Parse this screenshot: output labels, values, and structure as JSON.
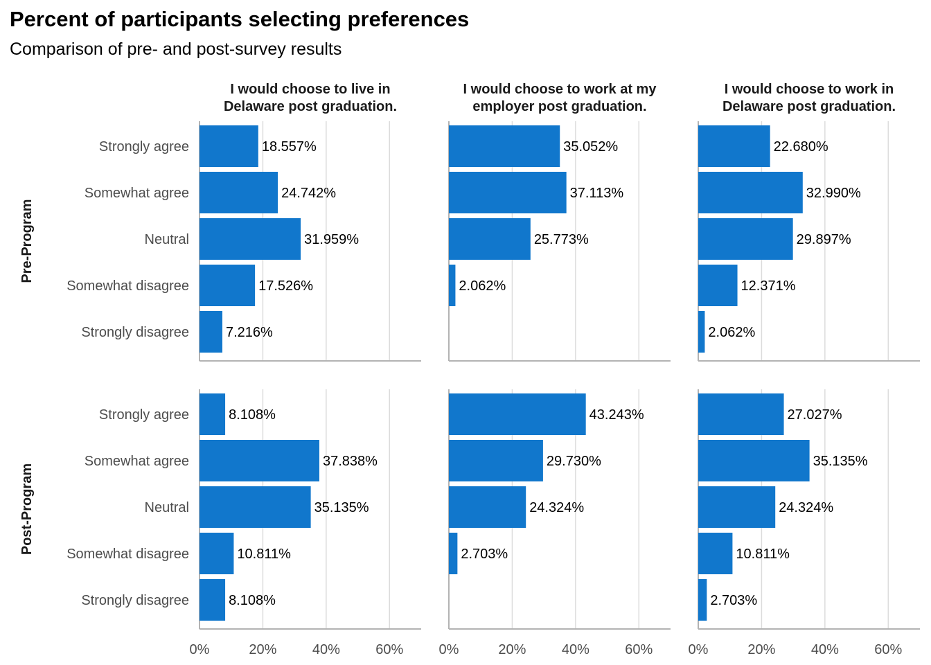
{
  "chart_data": {
    "type": "bar",
    "orientation": "horizontal",
    "title": "Percent of participants selecting preferences",
    "subtitle": "Comparison of pre- and post-survey results",
    "categories": [
      "Strongly agree",
      "Somewhat agree",
      "Neutral",
      "Somewhat disagree",
      "Strongly disagree"
    ],
    "facet_columns": [
      {
        "line1": "I would choose to live in",
        "line2": "Delaware post graduation."
      },
      {
        "line1": "I would choose to work at my",
        "line2": "employer post graduation."
      },
      {
        "line1": "I would choose to work in",
        "line2": "Delaware post graduation."
      }
    ],
    "facet_rows": [
      "Pre-Program",
      "Post-Program"
    ],
    "xlim": [
      0,
      70
    ],
    "x_ticks": [
      0,
      20,
      40,
      60
    ],
    "x_tick_labels": [
      "0%",
      "20%",
      "40%",
      "60%"
    ],
    "grid": true,
    "bar_color": "#1177CC",
    "panels": [
      {
        "row": 0,
        "col": 0,
        "values": [
          18.557,
          24.742,
          31.959,
          17.526,
          7.216
        ],
        "labels": [
          "18.557%",
          "24.742%",
          "31.959%",
          "17.526%",
          "7.216%"
        ]
      },
      {
        "row": 0,
        "col": 1,
        "values": [
          35.052,
          37.113,
          25.773,
          2.062,
          null
        ],
        "labels": [
          "35.052%",
          "37.113%",
          "25.773%",
          "2.062%",
          ""
        ]
      },
      {
        "row": 0,
        "col": 2,
        "values": [
          22.68,
          32.99,
          29.897,
          12.371,
          2.062
        ],
        "labels": [
          "22.680%",
          "32.990%",
          "29.897%",
          "12.371%",
          "2.062%"
        ]
      },
      {
        "row": 1,
        "col": 0,
        "values": [
          8.108,
          37.838,
          35.135,
          10.811,
          8.108
        ],
        "labels": [
          "8.108%",
          "37.838%",
          "35.135%",
          "10.811%",
          "8.108%"
        ]
      },
      {
        "row": 1,
        "col": 1,
        "values": [
          43.243,
          29.73,
          24.324,
          2.703,
          null
        ],
        "labels": [
          "43.243%",
          "29.730%",
          "24.324%",
          "2.703%",
          ""
        ]
      },
      {
        "row": 1,
        "col": 2,
        "values": [
          27.027,
          35.135,
          24.324,
          10.811,
          2.703
        ],
        "labels": [
          "27.027%",
          "35.135%",
          "24.324%",
          "10.811%",
          "2.703%"
        ]
      }
    ]
  }
}
